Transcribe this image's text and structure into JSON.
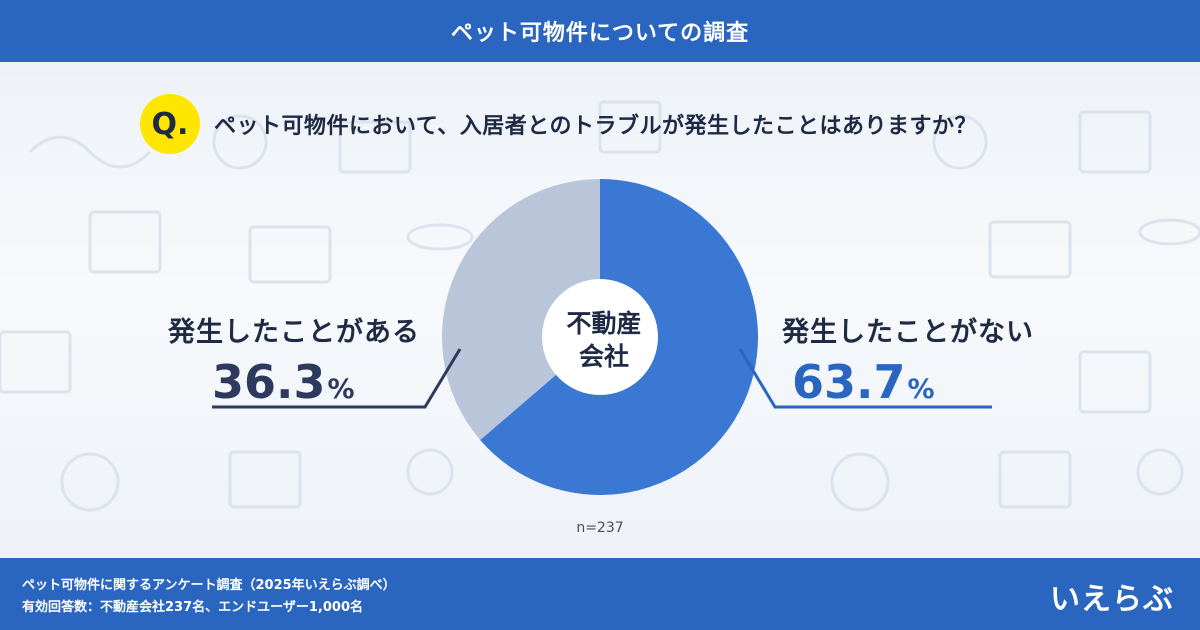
{
  "header": {
    "title": "ペット可物件についての調査"
  },
  "question": {
    "badge": "Q.",
    "text": "ペット可物件において、入居者とのトラブルが発生したことはありますか？"
  },
  "chart_data": {
    "type": "pie",
    "donut": true,
    "center_label_lines": [
      "不動産",
      "会社"
    ],
    "categories": [
      "発生したことがない",
      "発生したことがある"
    ],
    "values": [
      63.7,
      36.3
    ],
    "unit": "%",
    "colors": [
      "#3a78d4",
      "#b9c6d9"
    ],
    "note": "n=237",
    "title": ""
  },
  "labels": {
    "left": {
      "category": "発生したことがある",
      "value": "36.3",
      "unit": "%"
    },
    "right": {
      "category": "発生したことがない",
      "value": "63.7",
      "unit": "%"
    }
  },
  "footer": {
    "line1": "ペット可物件に関するアンケート調査（2025年いえらぶ調べ）",
    "line2": "有効回答数：不動産会社237名、エンドユーザー1,000名",
    "logo": "いえらぶ"
  }
}
